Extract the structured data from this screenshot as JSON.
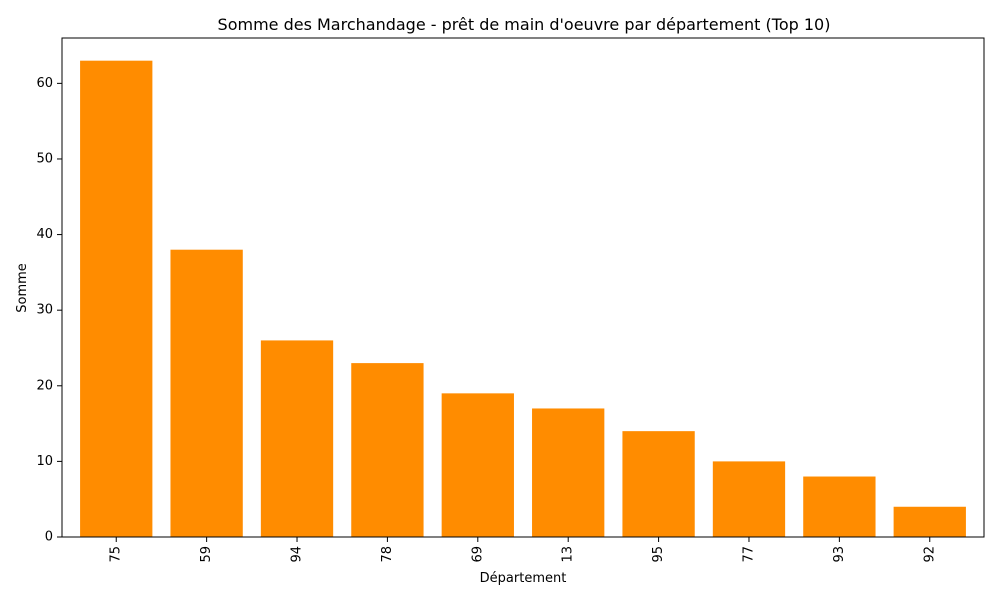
{
  "chart_data": {
    "type": "bar",
    "title": "Somme des Marchandage - prêt de main d'oeuvre par département (Top 10)",
    "xlabel": "Département",
    "ylabel": "Somme",
    "categories": [
      "75",
      "59",
      "94",
      "78",
      "69",
      "13",
      "95",
      "77",
      "93",
      "92"
    ],
    "values": [
      63,
      38,
      26,
      23,
      19,
      17,
      14,
      10,
      8,
      4
    ],
    "ylim": [
      0,
      66
    ],
    "yticks": [
      0,
      10,
      20,
      30,
      40,
      50,
      60
    ],
    "ytick_labels": [
      "0",
      "10",
      "20",
      "30",
      "40",
      "50",
      "60"
    ],
    "grid": false,
    "legend": "none",
    "bar_color": "#ff8c00",
    "x_tick_rotation": "vertical"
  }
}
